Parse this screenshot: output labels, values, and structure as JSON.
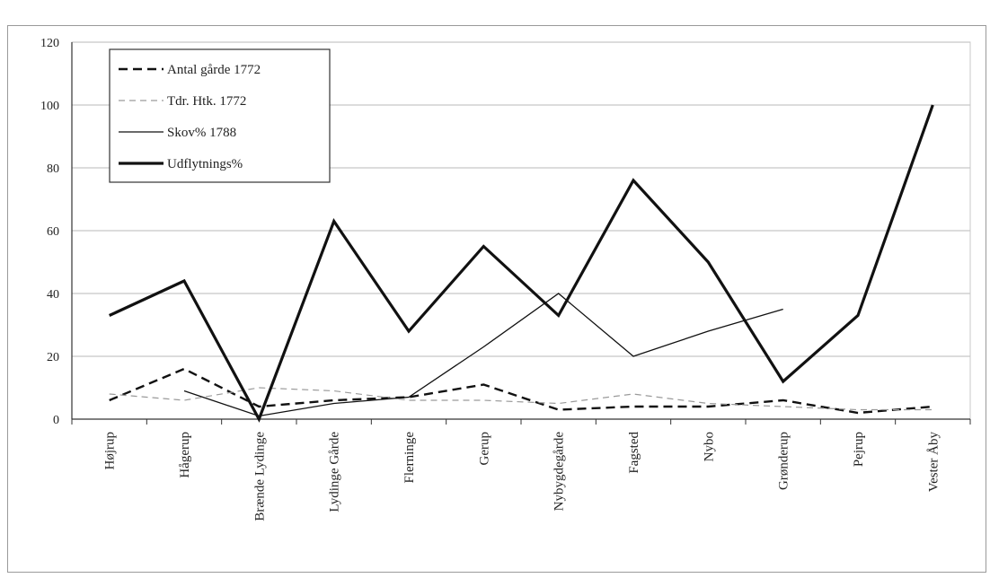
{
  "chart_data": {
    "type": "line",
    "categories": [
      "Højrup",
      "Hågerup",
      "Brænde Lydinge",
      "Lydinge Gårde",
      "Flerninge",
      "Gerup",
      "Nybygdegårde",
      "Fagsted",
      "Nybo",
      "Grønderup",
      "Pejrup",
      "Vester Åby"
    ],
    "ylim": [
      0,
      120
    ],
    "yticks": [
      0,
      20,
      40,
      60,
      80,
      100,
      120
    ],
    "grid": true,
    "legend_position": "top-left",
    "series": [
      {
        "name": "Antal gårde 1772",
        "style": "dashed-bold",
        "color": "#111111",
        "values": [
          6,
          16,
          4,
          6,
          7,
          11,
          3,
          4,
          4,
          6,
          2,
          4
        ]
      },
      {
        "name": "Tdr. Htk. 1772",
        "style": "dashed-thin",
        "color": "#9a9a9a",
        "values": [
          8,
          6,
          10,
          9,
          6,
          6,
          5,
          8,
          5,
          4,
          3,
          3
        ]
      },
      {
        "name": "Skov% 1788",
        "style": "solid-thin",
        "color": "#111111",
        "values": [
          null,
          9,
          1,
          5,
          7,
          23,
          40,
          20,
          28,
          35,
          null,
          null
        ]
      },
      {
        "name": "Udflytnings%",
        "style": "solid-bold",
        "color": "#111111",
        "values": [
          33,
          44,
          0,
          63,
          28,
          55,
          33,
          76,
          50,
          12,
          33,
          100
        ]
      }
    ]
  }
}
